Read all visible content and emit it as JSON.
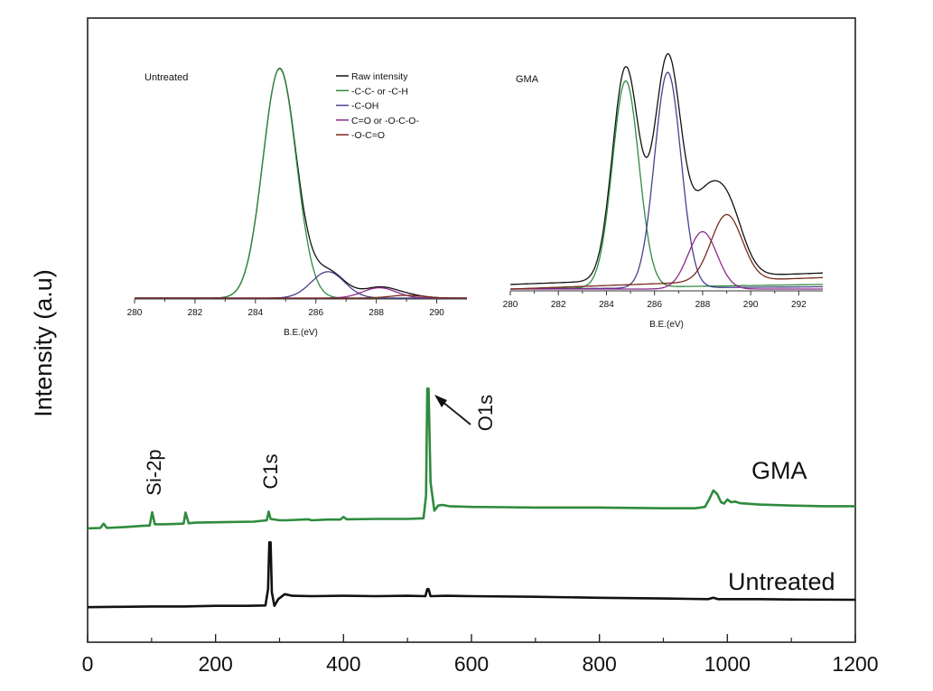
{
  "chart_data": [
    {
      "id": "survey",
      "type": "line",
      "title": "",
      "xlabel": "",
      "ylabel": "Intensity (a.u)",
      "xlim": [
        0,
        1200
      ],
      "ylim": [
        0,
        1
      ],
      "xticks": [
        0,
        200,
        400,
        600,
        800,
        1000,
        1200
      ],
      "yticks": [],
      "grid": false,
      "series": [
        {
          "name": "GMA",
          "color": "#2e8b3e",
          "points": [
            [
              0,
              0.022
            ],
            [
              20,
              0.023
            ],
            [
              25,
              0.036
            ],
            [
              30,
              0.023
            ],
            [
              60,
              0.026
            ],
            [
              90,
              0.03
            ],
            [
              97,
              0.03
            ],
            [
              101,
              0.07
            ],
            [
              105,
              0.034
            ],
            [
              120,
              0.034
            ],
            [
              150,
              0.036
            ],
            [
              153,
              0.069
            ],
            [
              158,
              0.037
            ],
            [
              170,
              0.039
            ],
            [
              200,
              0.04
            ],
            [
              260,
              0.042
            ],
            [
              280,
              0.046
            ],
            [
              283,
              0.072
            ],
            [
              286,
              0.05
            ],
            [
              300,
              0.046
            ],
            [
              310,
              0.046
            ],
            [
              345,
              0.049
            ],
            [
              350,
              0.046
            ],
            [
              375,
              0.048
            ],
            [
              395,
              0.048
            ],
            [
              400,
              0.056
            ],
            [
              405,
              0.049
            ],
            [
              450,
              0.05
            ],
            [
              500,
              0.05
            ],
            [
              525,
              0.052
            ],
            [
              529,
              0.12
            ],
            [
              531,
              0.44
            ],
            [
              533,
              0.44
            ],
            [
              536,
              0.16
            ],
            [
              542,
              0.075
            ],
            [
              548,
              0.09
            ],
            [
              555,
              0.092
            ],
            [
              565,
              0.088
            ],
            [
              600,
              0.086
            ],
            [
              650,
              0.085
            ],
            [
              700,
              0.084
            ],
            [
              750,
              0.084
            ],
            [
              800,
              0.084
            ],
            [
              850,
              0.083
            ],
            [
              900,
              0.082
            ],
            [
              950,
              0.082
            ],
            [
              965,
              0.086
            ],
            [
              972,
              0.11
            ],
            [
              978,
              0.135
            ],
            [
              984,
              0.125
            ],
            [
              990,
              0.1
            ],
            [
              995,
              0.096
            ],
            [
              1000,
              0.108
            ],
            [
              1006,
              0.1
            ],
            [
              1012,
              0.102
            ],
            [
              1020,
              0.097
            ],
            [
              1050,
              0.093
            ],
            [
              1100,
              0.09
            ],
            [
              1150,
              0.088
            ],
            [
              1200,
              0.088
            ]
          ]
        },
        {
          "name": "Untreated",
          "color": "#111111",
          "points": [
            [
              0,
              -0.214
            ],
            [
              50,
              -0.213
            ],
            [
              100,
              -0.212
            ],
            [
              150,
              -0.212
            ],
            [
              200,
              -0.21
            ],
            [
              250,
              -0.21
            ],
            [
              278,
              -0.209
            ],
            [
              282,
              -0.16
            ],
            [
              284,
              -0.02
            ],
            [
              286,
              -0.02
            ],
            [
              288,
              -0.17
            ],
            [
              292,
              -0.21
            ],
            [
              298,
              -0.19
            ],
            [
              308,
              -0.175
            ],
            [
              320,
              -0.18
            ],
            [
              350,
              -0.181
            ],
            [
              400,
              -0.18
            ],
            [
              450,
              -0.181
            ],
            [
              500,
              -0.18
            ],
            [
              528,
              -0.181
            ],
            [
              531,
              -0.16
            ],
            [
              533,
              -0.16
            ],
            [
              536,
              -0.181
            ],
            [
              560,
              -0.18
            ],
            [
              600,
              -0.181
            ],
            [
              700,
              -0.183
            ],
            [
              800,
              -0.186
            ],
            [
              900,
              -0.188
            ],
            [
              970,
              -0.19
            ],
            [
              978,
              -0.186
            ],
            [
              985,
              -0.19
            ],
            [
              1050,
              -0.19
            ],
            [
              1100,
              -0.191
            ],
            [
              1200,
              -0.192
            ]
          ]
        }
      ],
      "annotations": [
        {
          "text": "Si-2p",
          "x": 100
        },
        {
          "text": "C1s",
          "x": 284
        },
        {
          "text": "O1s",
          "x": 532
        },
        {
          "text": "GMA",
          "series": "GMA"
        },
        {
          "text": "Untreated",
          "series": "Untreated"
        }
      ]
    },
    {
      "id": "inset_untreated",
      "type": "line",
      "title": "Untreated",
      "xlabel": "B.E.(eV)",
      "ylabel": "",
      "xlim": [
        280,
        291
      ],
      "xticks": [
        280,
        282,
        284,
        286,
        288,
        290
      ],
      "ylim": [
        0,
        1
      ],
      "legend": {
        "placement": "top-right",
        "entries": [
          "Raw intensity",
          "-C-C- or -C-H",
          "-C-OH",
          "C=O or -O-C-O-",
          "-O-C=O"
        ]
      },
      "series": [
        {
          "name": "Raw intensity",
          "color": "#111111",
          "peaks": [
            [
              284.8,
              1.0,
              0.55
            ],
            [
              286.4,
              0.115,
              0.55
            ],
            [
              288.1,
              0.045,
              0.55
            ],
            [
              289.0,
              0.012,
              0.55
            ]
          ]
        },
        {
          "name": "-C-C- or -C-H",
          "color": "#2e8b3e",
          "peaks": [
            [
              284.8,
              1.0,
              0.55
            ]
          ]
        },
        {
          "name": "-C-OH",
          "color": "#4a3e8c",
          "peaks": [
            [
              286.4,
              0.115,
              0.55
            ]
          ]
        },
        {
          "name": "C=O or -O-C-O-",
          "color": "#8c2a8c",
          "peaks": [
            [
              288.1,
              0.045,
              0.55
            ]
          ]
        },
        {
          "name": "-O-C=O",
          "color": "#7a2a1e",
          "peaks": [
            [
              289.0,
              0.012,
              0.55
            ]
          ]
        }
      ]
    },
    {
      "id": "inset_gma",
      "type": "line",
      "title": "GMA",
      "xlabel": "B.E.(eV)",
      "ylabel": "",
      "xlim": [
        280,
        293
      ],
      "xticks": [
        280,
        282,
        284,
        286,
        288,
        290,
        292
      ],
      "ylim": [
        0,
        1
      ],
      "series": [
        {
          "name": "Raw intensity",
          "color": "#111111",
          "peaks": [
            [
              284.8,
              0.925,
              0.55
            ],
            [
              286.55,
              0.96,
              0.55
            ],
            [
              288.0,
              0.265,
              0.6
            ],
            [
              289.0,
              0.31,
              0.65
            ]
          ],
          "base": [
            0.02,
            0.07
          ]
        },
        {
          "name": "-C-C- or -C-H",
          "color": "#2e8b3e",
          "peaks": [
            [
              284.8,
              0.9,
              0.55
            ]
          ],
          "base": [
            0.0,
            0.02
          ]
        },
        {
          "name": "-C-OH",
          "color": "#4a3e8c",
          "peaks": [
            [
              286.55,
              0.94,
              0.55
            ]
          ],
          "base": [
            0.0,
            0.01
          ]
        },
        {
          "name": "C=O or -O-C-O-",
          "color": "#8c2a8c",
          "peaks": [
            [
              288.0,
              0.25,
              0.6
            ]
          ],
          "base": [
            0.0,
            0.0
          ]
        },
        {
          "name": "-O-C=O",
          "color": "#7a2a1e",
          "peaks": [
            [
              289.0,
              0.29,
              0.65
            ]
          ],
          "base": [
            0.0,
            0.05
          ]
        }
      ]
    }
  ]
}
